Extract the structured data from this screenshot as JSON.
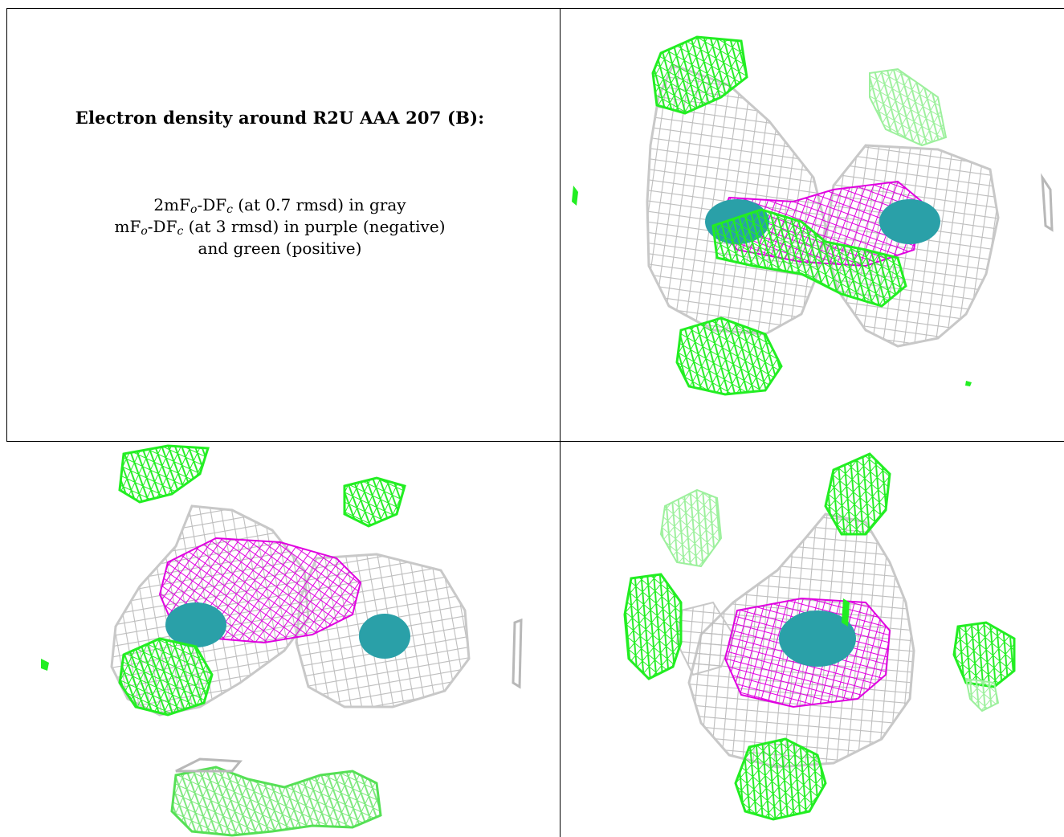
{
  "caption": {
    "title": "Electron density around R2U AAA 207 (B):",
    "line1": {
      "pre": "2mF",
      "sub1": "o",
      "mid": "-DF",
      "sub2": "c",
      "post": " (at 0.7 rmsd) in gray"
    },
    "line2": {
      "pre": "mF",
      "sub1": "o",
      "mid": "-DF",
      "sub2": "c",
      "post": " (at 3 rmsd) in purple (negative)"
    },
    "line3": "and green (positive)"
  },
  "colors": {
    "map_2fofc": "#c8c8c8",
    "map_fofc_negative": "#e000e0",
    "map_fofc_positive": "#22ee22",
    "ligand": "#2aa0a8"
  },
  "panels": [
    {
      "id": "top-right",
      "view": "view-1"
    },
    {
      "id": "bottom-left",
      "view": "view-2"
    },
    {
      "id": "bottom-right",
      "view": "view-3"
    }
  ]
}
